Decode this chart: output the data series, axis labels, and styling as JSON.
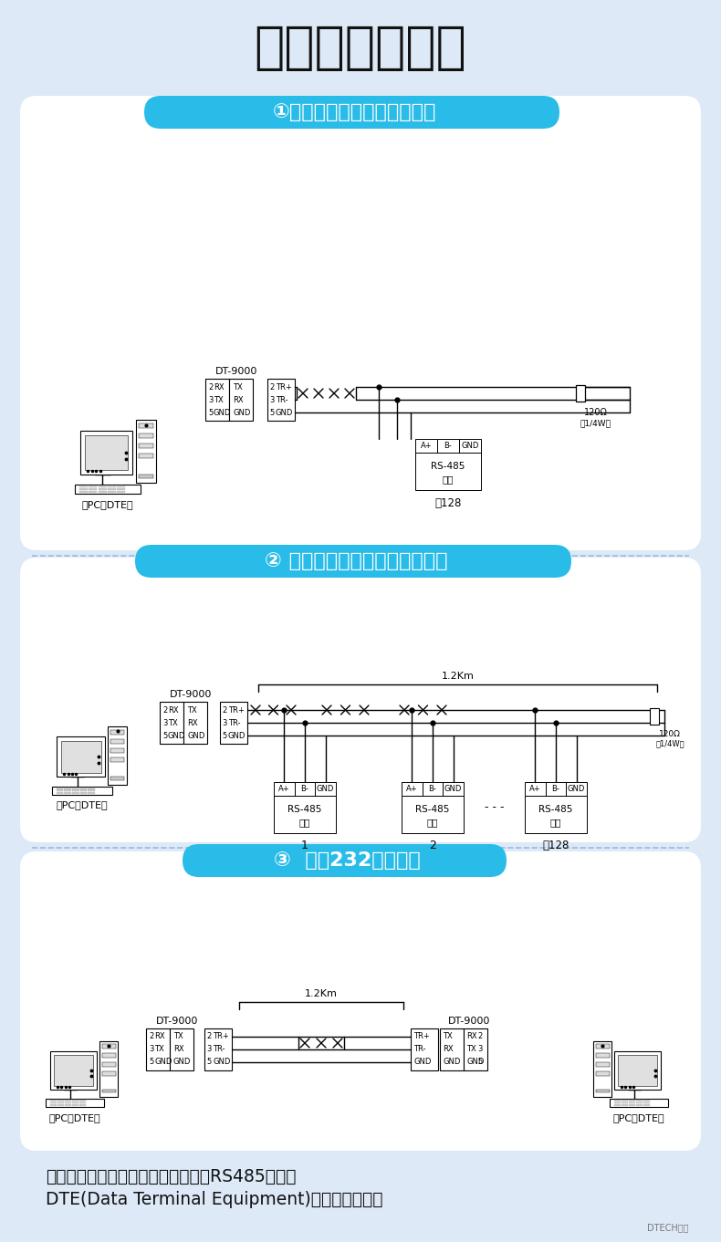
{
  "title": "通信连接示意图",
  "bg_color": "#dde9f6",
  "panel_bg": "#ffffff",
  "cyan_bg": "#29bce8",
  "section1_label": "①主从半双工通讯（点对点）",
  "section2_label": "② 主从半双工通讯（点对多点）",
  "section3_label": "③  延长232通讯距离",
  "note_line1": "注：供电不足的情况下需要更换有源RS485转换器",
  "note_line2": "DTE(Data Terminal Equipment)，数据终端设备",
  "pc_label": "（PC或DTE）",
  "dt9000": "DT-9000",
  "rs485_label": "RS-485",
  "shebei": "设备",
  "to128": "至128",
  "km12": "1.2Km",
  "res_label1": "120Ω",
  "res_label2": "（1/4W）",
  "dtech": "DTECH帝特",
  "white": "#ffffff",
  "black": "#111111",
  "dark_cyan": "#1aaad4"
}
